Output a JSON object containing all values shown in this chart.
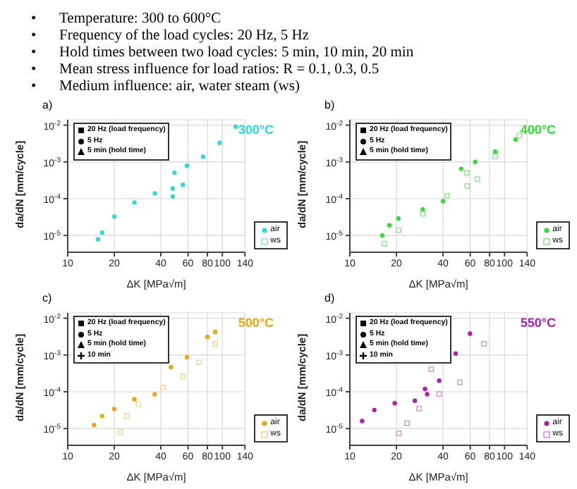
{
  "chart_data": [
    {
      "type": "scatter",
      "title": "a)",
      "subtitle": "•\tTemperature: 300 to 600°C\n•\tFrequency of the load cycles: 20 Hz, 5 Hz\n•\tHold times between two load cycles: 5 min, 10 min, 20 min\n•\tMean stress influence for load ratios: R = 0.1, 0.3, 0.5\n•\tMedium influence: air, water steam (ws)",
      "xlabel": "ΔK [MPa√m]",
      "ylabel": "da/dN [mm/cycle]",
      "annotations": [
        "300°C",
        "20 Hz (load frequency)",
        "5 Hz",
        "5 min (hold time)"
      ],
      "log": "xy",
      "grid": true,
      "legend": "bottom right",
      "xlim": [
        10,
        140
      ],
      "xticks": [
        10,
        20,
        40,
        60,
        80,
        100,
        140
      ],
      "ylim": [
        3.5e-06,
        0.014
      ],
      "yticks": [
        {
          "value": 1e-05,
          "label": "10$^{-5}$"
        },
        {
          "value": 0.0001,
          "label": "10$^{-4}$"
        },
        {
          "value": 0.001,
          "label": "10$^{-3}$"
        },
        {
          "value": 0.01,
          "label": "10$^{-2}$"
        }
      ],
      "series": [
        {
          "name": "air",
          "color": "#33d8dc",
          "marker": "circle",
          "x": [
            15.7,
            16.7,
            20,
            27,
            36.6,
            47.8,
            55.5,
            47.8,
            49,
            59,
            75,
            96,
            122
          ],
          "values": [
            7.9e-06,
            1.2e-05,
            3.3e-05,
            7.9e-05,
            0.00014,
            0.00019,
            0.00024,
            0.000115,
            0.00051,
            0.00079,
            0.0014,
            0.0033,
            0.0091
          ]
        },
        {
          "name": "ws",
          "color": "#9eecee",
          "marker": "square"
        }
      ]
    },
    {
      "type": "scatter",
      "title": "b)",
      "xlabel": "ΔK [MPa√m]",
      "ylabel": "da/dN [mm/cycle]",
      "annotations": [
        "400°C",
        "20 Hz (load frequency)",
        "5 Hz",
        "5 min (hold time)"
      ],
      "log": "xy",
      "grid": true,
      "legend": "bottom right",
      "xlim": [
        10,
        140
      ],
      "xticks": [
        10,
        20,
        40,
        60,
        80,
        100,
        140
      ],
      "ylim": [
        3.5e-06,
        0.014
      ],
      "yticks": [
        {
          "value": 1e-05,
          "label": "10$^{-5}$"
        },
        {
          "value": 0.0001,
          "label": "10$^{-4}$"
        },
        {
          "value": 0.001,
          "label": "10$^{-3}$"
        },
        {
          "value": 0.01,
          "label": "10$^{-2}$"
        }
      ],
      "series": [
        {
          "name": "air",
          "color": "#33dd33",
          "marker": "circle",
          "x": [
            16.2,
            18,
            20.6,
            29.6,
            40,
            52.4,
            64.6,
            87,
            118
          ],
          "values": [
            1e-05,
            1.9e-05,
            2.9e-05,
            5.1e-05,
            8.6e-05,
            0.00065,
            0.001,
            0.0019,
            0.0041
          ]
        },
        {
          "name": "ws",
          "color": "#99e699",
          "marker": "square",
          "x": [
            16.7,
            20.6,
            29.6,
            42.4,
            57.4,
            66.7,
            57,
            87,
            125
          ],
          "values": [
            6e-06,
            1.4e-05,
            3.9e-05,
            0.00012,
            0.00022,
            0.00034,
            0.00051,
            0.0014,
            0.0052
          ]
        }
      ]
    },
    {
      "type": "scatter",
      "title": "c)",
      "xlabel": "ΔK [MPa√m]",
      "ylabel": "da/dN [mm/cycle]",
      "annotations": [
        "500°C",
        "20 Hz (load frequency)",
        "5 Hz",
        "5 min (hold time)",
        "10 min"
      ],
      "log": "xy",
      "grid": true,
      "legend": "bottom right",
      "xlim": [
        10,
        140
      ],
      "xticks": [
        10,
        20,
        40,
        60,
        80,
        100,
        140
      ],
      "ylim": [
        3.5e-06,
        0.014
      ],
      "yticks": [
        {
          "value": 1e-05,
          "label": "10$^{-5}$"
        },
        {
          "value": 0.0001,
          "label": "10$^{-4}$"
        },
        {
          "value": 0.001,
          "label": "10$^{-3}$"
        },
        {
          "value": 0.01,
          "label": "10$^{-2}$"
        }
      ],
      "series": [
        {
          "name": "air",
          "color": "#e8a818",
          "marker": "circle",
          "x": [
            14.8,
            16.7,
            20,
            27,
            36.5,
            46.5,
            59,
            80,
            90
          ],
          "values": [
            1.25e-05,
            2.2e-05,
            3.4e-05,
            6.3e-05,
            8.6e-05,
            0.00047,
            0.00087,
            0.0031,
            0.0042
          ]
        },
        {
          "name": "ws",
          "color": "#f0dc9c",
          "marker": "square",
          "x": [
            21.9,
            24.1,
            28.7,
            41.3,
            55.6,
            70.8,
            90
          ],
          "values": [
            8e-06,
            2.2e-05,
            4.6e-05,
            0.00013,
            0.00026,
            0.00063,
            0.002
          ]
        }
      ]
    },
    {
      "type": "scatter",
      "title": "d)",
      "xlabel": "ΔK [MPa√m]",
      "ylabel": "da/dN [mm/cycle]",
      "annotations": [
        "550°C",
        "20 Hz (load frequency)",
        "5 Hz",
        "5 min (hold time)",
        "10 min"
      ],
      "log": "xy",
      "grid": true,
      "legend": "bottom right",
      "xlim": [
        10,
        140
      ],
      "xticks": [
        10,
        20,
        40,
        60,
        80,
        100,
        140
      ],
      "ylim": [
        3.5e-06,
        0.014
      ],
      "yticks": [
        {
          "value": 1e-05,
          "label": "10$^{-5}$"
        },
        {
          "value": 0.0001,
          "label": "10$^{-4}$"
        },
        {
          "value": 0.001,
          "label": "10$^{-3}$"
        },
        {
          "value": 0.01,
          "label": "10$^{-2}$"
        }
      ],
      "series": [
        {
          "name": "air",
          "color": "#b020b0",
          "marker": "circle",
          "x": [
            12,
            14.4,
            19.5,
            26.3,
            31.6,
            30.6,
            37.8,
            48.3,
            59.8
          ],
          "values": [
            1.6e-05,
            3.2e-05,
            4.9e-05,
            5.7e-05,
            8.6e-05,
            0.00012,
            0.0002,
            0.0011,
            0.0038
          ]
        },
        {
          "name": "ws",
          "color": "#d8a0d8",
          "marker": "square",
          "x": [
            20.7,
            23.4,
            28,
            37.8,
            51.4,
            33.6,
            73.8
          ],
          "values": [
            7.4e-06,
            1.4e-05,
            3.5e-05,
            8.7e-05,
            0.00018,
            0.00041,
            0.002
          ]
        }
      ]
    }
  ]
}
